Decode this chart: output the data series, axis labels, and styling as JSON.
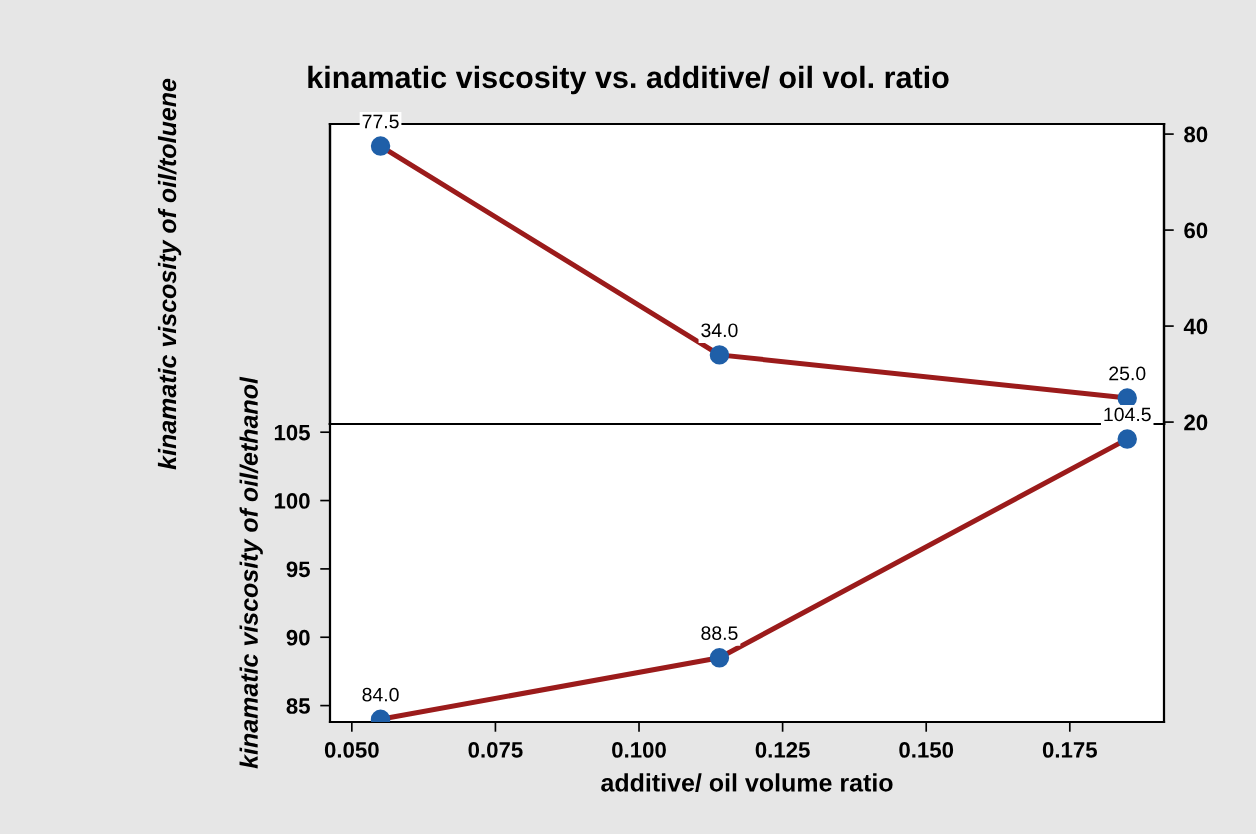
{
  "chart_data": [
    {
      "type": "line",
      "title": "kinamatic viscosity vs. additive/ oil vol. ratio",
      "ylabel": "kinamatic viscosity of oil/toluene",
      "x": [
        0.055,
        0.114,
        0.185
      ],
      "xlim": [
        0.0462,
        0.1914
      ],
      "y2lim": [
        19.6,
        82.1
      ],
      "y2ticks": [
        20,
        40,
        60,
        80
      ],
      "marker": "circle",
      "line_style": "solid",
      "grid": false,
      "legend": false,
      "series": [
        {
          "color": "#9b1b1b",
          "values": [
            77.5,
            34.0,
            25.0
          ],
          "value_labels": [
            "77.5",
            "34.0",
            "25.0"
          ],
          "axis": "y2"
        }
      ]
    },
    {
      "type": "line",
      "xlabel": "additive/ oil volume ratio",
      "ylabel": "kinamatic viscosity of oil/ethanol",
      "x": [
        0.055,
        0.114,
        0.185
      ],
      "xlim": [
        0.0462,
        0.1914
      ],
      "xticks": [
        {
          "value": 0.05,
          "label": "0.050"
        },
        0.075,
        {
          "value": 0.1,
          "label": "0.100"
        },
        0.125,
        {
          "value": 0.15,
          "label": "0.150"
        },
        0.175
      ],
      "ylim": [
        83.8,
        105.6
      ],
      "yticks": [
        85,
        90,
        95,
        100,
        105
      ],
      "marker": "circle",
      "line_style": "solid",
      "grid": false,
      "legend": false,
      "series": [
        {
          "color": "#9b1b1b",
          "values": [
            84.0,
            88.5,
            104.5
          ],
          "value_labels": [
            "84.0",
            "88.5",
            "104.5"
          ]
        }
      ]
    }
  ]
}
